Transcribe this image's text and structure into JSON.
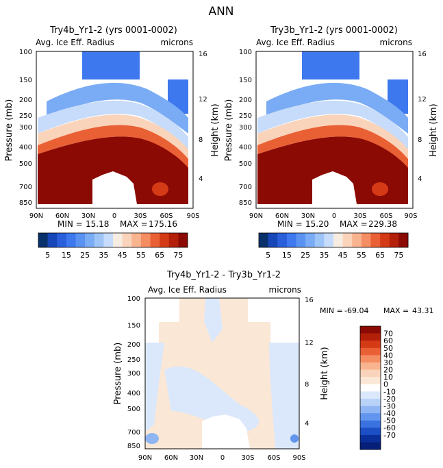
{
  "page_title": "ANN",
  "colors": {
    "blue_dark": "#08306b",
    "blue_mid": "#2f6fe0",
    "blue_light": "#c9ddf7",
    "peach": "#fbe3cf",
    "orange": "#f0703a",
    "red": "#c42a12",
    "dark_red": "#8c0a04"
  },
  "chart_data": [
    {
      "id": "top_left",
      "type": "heatmap",
      "title": "Try4b_Yr1-2 (yrs 0001-0002)",
      "field": "Avg. Ice Eff. Radius",
      "units": "microns",
      "ylabel": "Pressure (mb)",
      "ylabel_right": "Height (km)",
      "pressure_ticks": [
        "100",
        "150",
        "200",
        "250",
        "300",
        "400",
        "500",
        "700",
        "850"
      ],
      "height_ticks": [
        "16",
        "12",
        "8",
        "4"
      ],
      "lat_ticks": [
        "90N",
        "60N",
        "30N",
        "0",
        "30S",
        "60S",
        "90S"
      ],
      "min_label": "MIN =",
      "min_value": "15.18",
      "max_label": "MAX =",
      "max_value": "175.16"
    },
    {
      "id": "top_right",
      "type": "heatmap",
      "title": "Try3b_Yr1-2 (yrs 0001-0002)",
      "field": "Avg. Ice Eff. Radius",
      "units": "microns",
      "ylabel": "Pressure (mb)",
      "ylabel_right": "Height (km)",
      "pressure_ticks": [
        "100",
        "150",
        "200",
        "250",
        "300",
        "400",
        "500",
        "700",
        "850"
      ],
      "height_ticks": [
        "16",
        "12",
        "8",
        "4"
      ],
      "lat_ticks": [
        "90N",
        "60N",
        "30N",
        "0",
        "30S",
        "60S",
        "90S"
      ],
      "min_label": "MIN =",
      "min_value": "15.20",
      "max_label": "MAX =",
      "max_value": "229.38"
    },
    {
      "id": "bottom",
      "type": "heatmap",
      "title": "Try4b_Yr1-2 - Try3b_Yr1-2",
      "field": "Avg. Ice Eff. Radius",
      "units": "microns",
      "ylabel": "Pressure (mb)",
      "ylabel_right": "Height (km)",
      "pressure_ticks": [
        "100",
        "150",
        "200",
        "250",
        "300",
        "400",
        "500",
        "700",
        "850"
      ],
      "height_ticks": [
        "16",
        "12",
        "8",
        "4"
      ],
      "lat_ticks": [
        "90N",
        "60N",
        "30N",
        "0",
        "30S",
        "60S",
        "90S"
      ],
      "min_label": "MIN =",
      "min_value": "-69.04",
      "max_label": "MAX =",
      "max_value": "43.31"
    }
  ],
  "colorbar_top": {
    "levels": [
      5,
      10,
      15,
      20,
      25,
      30,
      35,
      40,
      45,
      50,
      55,
      60,
      65,
      70,
      75
    ],
    "labels": [
      "5",
      "15",
      "25",
      "35",
      "45",
      "55",
      "65",
      "75"
    ],
    "colors": [
      "#08306b",
      "#1746b8",
      "#2a5fdc",
      "#3e78ee",
      "#5a92f2",
      "#7aacf5",
      "#9fc4f8",
      "#c7dcfa",
      "#f7ece2",
      "#fad4ba",
      "#f8b48f",
      "#f48d62",
      "#ea6035",
      "#d43a16",
      "#b31f08",
      "#8c0a04"
    ]
  },
  "colorbar_diff": {
    "labels": [
      "70",
      "60",
      "50",
      "40",
      "30",
      "20",
      "10",
      "0",
      "-10",
      "-20",
      "-30",
      "-40",
      "-50",
      "-60",
      "-70"
    ],
    "colors": [
      "#8c0a04",
      "#b31f08",
      "#d43a16",
      "#ea6035",
      "#f48d62",
      "#f8b48f",
      "#fad4ba",
      "#fbe7d6",
      "#ffffff",
      "#dbe8fb",
      "#b9d2f7",
      "#8fb6f3",
      "#6296ee",
      "#3a72e0",
      "#1c4fc4",
      "#0b2f9a",
      "#06207a"
    ]
  }
}
